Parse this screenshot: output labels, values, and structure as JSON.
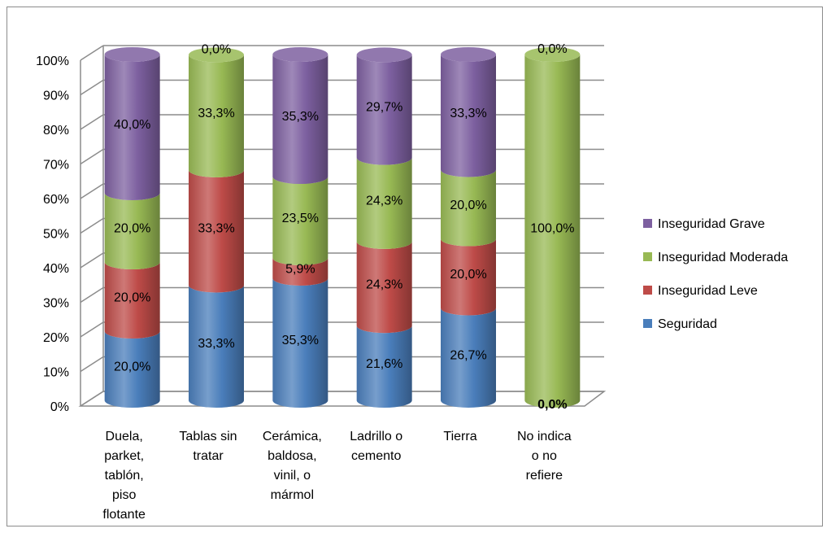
{
  "chart_data": {
    "type": "bar",
    "stacked": true,
    "percent_stacked": true,
    "style": "3d-cylinder",
    "categories": [
      [
        "Duela,",
        "parket,",
        "tablón,",
        "piso",
        "flotante"
      ],
      [
        "Tablas sin",
        "tratar"
      ],
      [
        "Cerámica,",
        "baldosa,",
        "vinil, o",
        "mármol"
      ],
      [
        "Ladrillo o",
        "cemento"
      ],
      [
        "Tierra"
      ],
      [
        "No indica",
        "o no",
        "refiere"
      ]
    ],
    "series": [
      {
        "name": "Seguridad",
        "color": "#4a7ebb",
        "values": [
          20.0,
          33.3,
          35.3,
          21.6,
          26.7,
          0.0
        ],
        "labels": [
          "20,0%",
          "33,3%",
          "35,3%",
          "21,6%",
          "26,7%",
          "0,0%"
        ]
      },
      {
        "name": "Inseguridad Leve",
        "color": "#be4b48",
        "values": [
          20.0,
          33.3,
          5.9,
          24.3,
          20.0,
          0.0
        ],
        "labels": [
          "20,0%",
          "33,3%",
          "5,9%",
          "24,3%",
          "20,0%",
          ""
        ]
      },
      {
        "name": "Inseguridad Moderada",
        "color": "#98b954",
        "values": [
          20.0,
          33.3,
          23.5,
          24.3,
          20.0,
          100.0
        ],
        "labels": [
          "20,0%",
          "33,3%",
          "23,5%",
          "24,3%",
          "20,0%",
          "100,0%"
        ]
      },
      {
        "name": "Inseguridad Grave",
        "color": "#7d60a0",
        "values": [
          40.0,
          0.0,
          35.3,
          29.7,
          33.3,
          0.0
        ],
        "labels": [
          "40,0%",
          "0,0%",
          "35,3%",
          "29,7%",
          "33,3%",
          "0,0%"
        ]
      }
    ],
    "y_ticks": [
      "0%",
      "10%",
      "20%",
      "30%",
      "40%",
      "50%",
      "60%",
      "70%",
      "80%",
      "90%",
      "100%"
    ],
    "ylim": [
      0,
      100
    ],
    "grid": true,
    "legend_position": "right",
    "legend_order": [
      "Inseguridad Grave",
      "Inseguridad Moderada",
      "Inseguridad Leve",
      "Seguridad"
    ]
  }
}
